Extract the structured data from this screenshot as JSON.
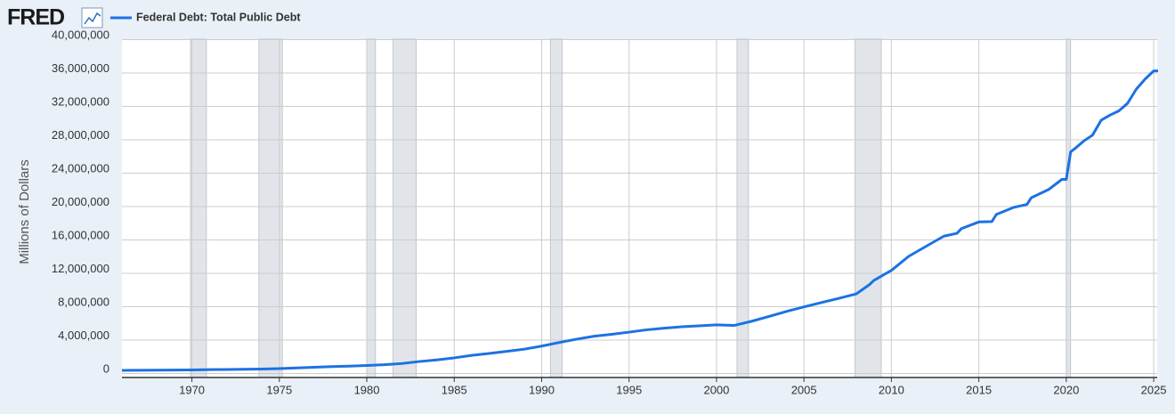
{
  "logo": "FRED",
  "chart_data": {
    "type": "line",
    "y_label": "Millions of Dollars",
    "x": [
      1966,
      1967,
      1968,
      1969,
      1970,
      1971,
      1972,
      1973,
      1974,
      1975,
      1976,
      1977,
      1978,
      1979,
      1980,
      1981,
      1982,
      1983,
      1984,
      1985,
      1986,
      1987,
      1988,
      1989,
      1990,
      1991,
      1992,
      1993,
      1994,
      1995,
      1996,
      1997,
      1998,
      1999,
      2000,
      2001,
      2002,
      2003,
      2004,
      2005,
      2006,
      2007,
      2008,
      2008.75,
      2009,
      2010,
      2011,
      2012,
      2013,
      2013.75,
      2014,
      2015,
      2015.75,
      2016,
      2017,
      2017.75,
      2018,
      2019,
      2019.75,
      2020,
      2020.25,
      2020.5,
      2021,
      2021.5,
      2022,
      2022.5,
      2023,
      2023.5,
      2024,
      2024.5,
      2025,
      2025.25
    ],
    "series": [
      {
        "name": "Federal Debt: Total Public Debt",
        "color": "#1c72e2",
        "values": [
          320000,
          330000,
          350000,
          360000,
          380000,
          410000,
          430000,
          460000,
          480000,
          540000,
          620000,
          700000,
          770000,
          830000,
          910000,
          1000000,
          1140000,
          1380000,
          1570000,
          1820000,
          2120000,
          2350000,
          2600000,
          2860000,
          3230000,
          3660000,
          4060000,
          4410000,
          4640000,
          4900000,
          5180000,
          5370000,
          5540000,
          5650000,
          5770000,
          5700000,
          6200000,
          6780000,
          7380000,
          7930000,
          8450000,
          8950000,
          9490000,
          10600000,
          11100000,
          12300000,
          14000000,
          15200000,
          16400000,
          16740000,
          17300000,
          18100000,
          18150000,
          19000000,
          19850000,
          20200000,
          21000000,
          22000000,
          23200000,
          23200000,
          26500000,
          26900000,
          27800000,
          28500000,
          30300000,
          30900000,
          31400000,
          32300000,
          34000000,
          35200000,
          36200000,
          36200000
        ]
      }
    ],
    "recessions": [
      [
        1969.92,
        1970.83
      ],
      [
        1973.83,
        1975.17
      ],
      [
        1980.0,
        1980.5
      ],
      [
        1981.5,
        1982.83
      ],
      [
        1990.5,
        1991.17
      ],
      [
        2001.17,
        2001.83
      ],
      [
        2007.92,
        2009.42
      ],
      [
        2020.0,
        2020.25
      ]
    ],
    "recession_color": "#e1e5ea",
    "xlim": [
      1966,
      2025.2
    ],
    "xticks": [
      1970,
      1975,
      1980,
      1985,
      1990,
      1995,
      2000,
      2005,
      2010,
      2015,
      2020,
      2025
    ],
    "ylim": [
      0,
      40000000
    ],
    "yticks": [
      {
        "value": 0,
        "label": "0"
      },
      {
        "value": 4000000,
        "label": "4,000,000"
      },
      {
        "value": 8000000,
        "label": "8,000,000"
      },
      {
        "value": 12000000,
        "label": "12,000,000"
      },
      {
        "value": 16000000,
        "label": "16,000,000"
      },
      {
        "value": 20000000,
        "label": "20,000,000"
      },
      {
        "value": 24000000,
        "label": "24,000,000"
      },
      {
        "value": 28000000,
        "label": "28,000,000"
      },
      {
        "value": 32000000,
        "label": "32,000,000"
      },
      {
        "value": 36000000,
        "label": "36,000,000"
      },
      {
        "value": 40000000,
        "label": "40,000,000"
      }
    ],
    "grid": true
  }
}
